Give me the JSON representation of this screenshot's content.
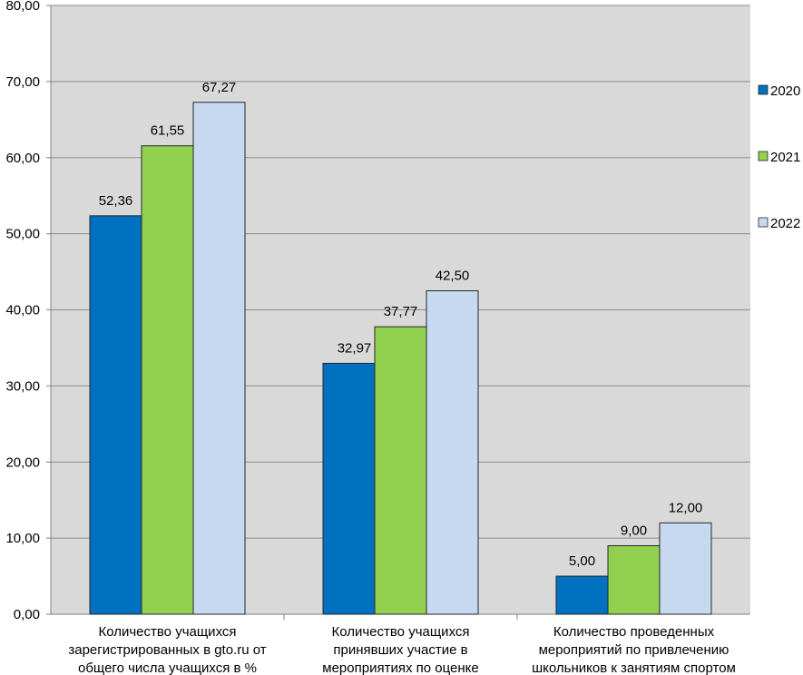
{
  "chart_data": {
    "type": "bar",
    "title": "",
    "xlabel": "",
    "ylabel": "",
    "ylim": [
      0,
      80
    ],
    "yticks": [
      "0,00",
      "10,00",
      "20,00",
      "30,00",
      "40,00",
      "50,00",
      "60,00",
      "70,00",
      "80,00"
    ],
    "grid": true,
    "legend_position": "right",
    "categories": [
      [
        "Количество учащихся",
        "зарегистрированных в gto.ru от",
        "общего числа учащихся в %"
      ],
      [
        "Количество учащихся",
        "принявших участие в",
        "мероприятиях по оценке"
      ],
      [
        "Количество проведенных",
        "мероприятий  по привлечению",
        "школьников к занятиям спортом"
      ]
    ],
    "series": [
      {
        "name": "2020",
        "color": "#0070C0",
        "values": [
          52.36,
          32.97,
          5.0
        ],
        "labels": [
          "52,36",
          "32,97",
          "5,00"
        ]
      },
      {
        "name": "2021",
        "color": "#92D050",
        "values": [
          61.55,
          37.77,
          9.0
        ],
        "labels": [
          "61,55",
          "37,77",
          "9,00"
        ]
      },
      {
        "name": "2022",
        "color": "#C6D9F1",
        "values": [
          67.27,
          42.5,
          12.0
        ],
        "labels": [
          "67,27",
          "42,50",
          "12,00"
        ]
      }
    ]
  }
}
